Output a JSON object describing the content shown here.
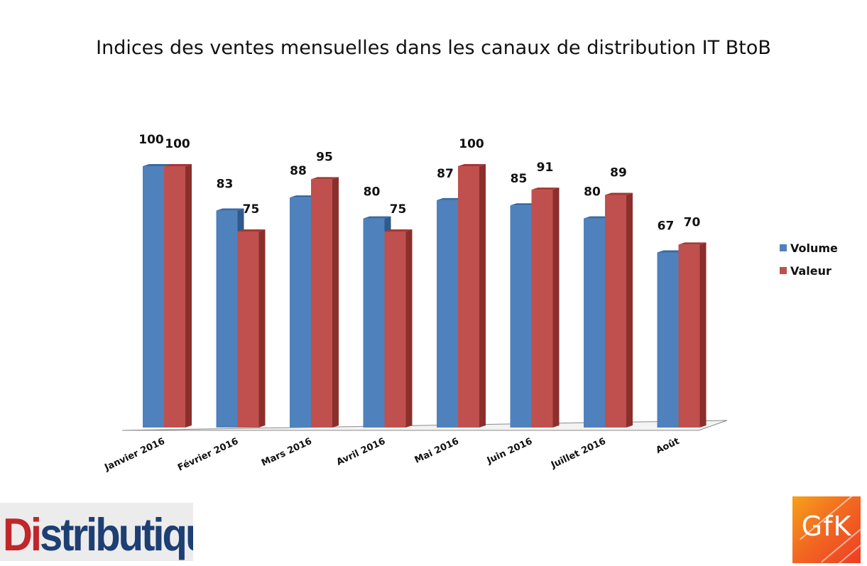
{
  "chart_data": {
    "type": "bar",
    "title": "Indices des ventes mensuelles dans les canaux de distribution IT BtoB",
    "categories": [
      "Janvier 2016",
      "Février 2016",
      "Mars 2016",
      "Avril 2016",
      "Mai 2016",
      "Juin 2016",
      "Juillet 2016",
      "Août"
    ],
    "series": [
      {
        "name": "Volume",
        "values": [
          100,
          83,
          88,
          80,
          87,
          85,
          80,
          67
        ],
        "color": "#4f81bd"
      },
      {
        "name": "Valeur",
        "values": [
          100,
          75,
          95,
          75,
          100,
          91,
          89,
          70
        ],
        "color": "#c0504d"
      }
    ],
    "ylim": [
      0,
      100
    ],
    "grid": false,
    "legend_position": "right",
    "three_d": true
  },
  "logos": {
    "left": {
      "prefix": "Di",
      "rest": "stributique"
    },
    "right": {
      "text": "GfK"
    }
  }
}
